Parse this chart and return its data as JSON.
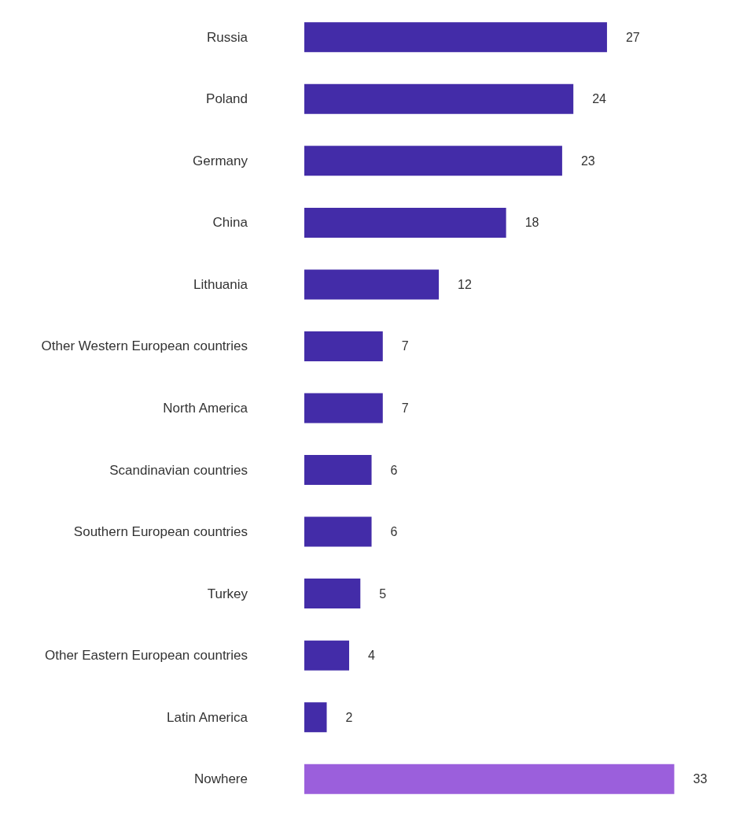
{
  "chart_data": {
    "type": "bar",
    "orientation": "horizontal",
    "data_labels": true,
    "grid": false,
    "categories": [
      "Russia",
      "Poland",
      "Germany",
      "China",
      "Lithuania",
      "Other Western European countries",
      "North America",
      "Scandinavian countries",
      "Southern European countries",
      "Turkey",
      "Other Eastern European countries",
      "Latin America",
      "Nowhere"
    ],
    "values": [
      27,
      24,
      23,
      18,
      12,
      7,
      7,
      6,
      6,
      5,
      4,
      2,
      33
    ],
    "colors": [
      "#432ca8",
      "#432ca8",
      "#432ca8",
      "#432ca8",
      "#432ca8",
      "#432ca8",
      "#432ca8",
      "#432ca8",
      "#432ca8",
      "#432ca8",
      "#432ca8",
      "#432ca8",
      "#9b5fdc"
    ]
  }
}
